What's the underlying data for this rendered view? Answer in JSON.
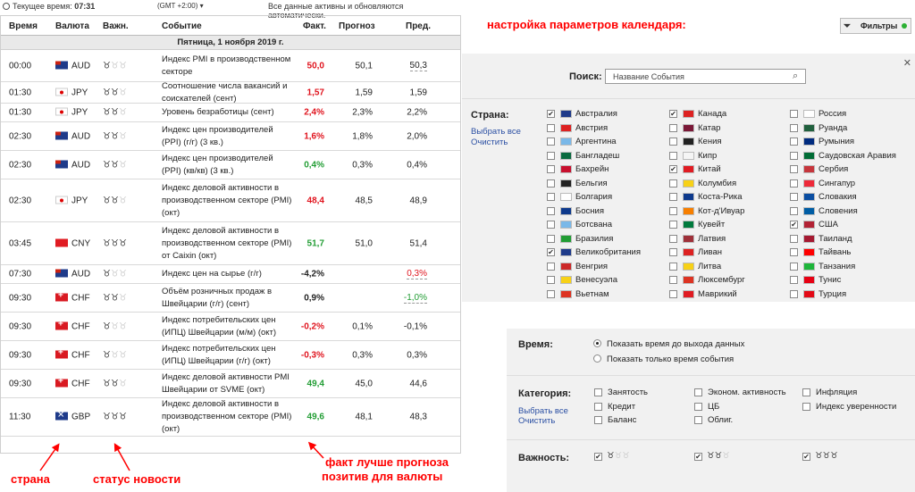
{
  "topbar": {
    "current_time_label": "Текущее время:",
    "current_time": "07:31",
    "timezone": "(GMT +2:00)",
    "status": "Все данные активны и обновляются автоматически."
  },
  "calendar": {
    "headers": {
      "time": "Время",
      "currency": "Валюта",
      "importance": "Важн.",
      "event": "Событие",
      "actual": "Факт.",
      "forecast": "Прогноз",
      "previous": "Пред."
    },
    "day_label": "Пятница, 1 ноября 2019 г.",
    "rows": [
      {
        "time": "00:00",
        "flag": "aud",
        "currency": "AUD",
        "bulls": 1,
        "event": "Индекс PMI в производственном секторе",
        "actual": "50,0",
        "actual_color": "red",
        "forecast": "50,1",
        "previous": "50,3",
        "prev_color": "blk",
        "prev_und": true
      },
      {
        "time": "01:30",
        "flag": "jpy",
        "currency": "JPY",
        "bulls": 2,
        "event": "Соотношение числа вакансий и соискателей (сент)",
        "actual": "1,57",
        "actual_color": "red",
        "forecast": "1,59",
        "previous": "1,59",
        "prev_color": "blk",
        "prev_und": false
      },
      {
        "time": "01:30",
        "flag": "jpy",
        "currency": "JPY",
        "bulls": 2,
        "event": "Уровень безработицы (сент)",
        "actual": "2,4%",
        "actual_color": "red",
        "forecast": "2,3%",
        "previous": "2,2%",
        "prev_color": "blk",
        "prev_und": false
      },
      {
        "time": "02:30",
        "flag": "aud",
        "currency": "AUD",
        "bulls": 2,
        "event": "Индекс цен производителей (PPI) (г/г) (3 кв.)",
        "actual": "1,6%",
        "actual_color": "red",
        "forecast": "1,8%",
        "previous": "2,0%",
        "prev_color": "blk",
        "prev_und": false
      },
      {
        "time": "02:30",
        "flag": "aud",
        "currency": "AUD",
        "bulls": 2,
        "event": "Индекс цен производителей (PPI) (кв/кв) (3 кв.)",
        "actual": "0,4%",
        "actual_color": "grn",
        "forecast": "0,3%",
        "previous": "0,4%",
        "prev_color": "blk",
        "prev_und": false
      },
      {
        "time": "02:30",
        "flag": "jpy",
        "currency": "JPY",
        "bulls": 2,
        "event": "Индекс деловой активности в производственном секторе (PMI) (окт)",
        "actual": "48,4",
        "actual_color": "red",
        "forecast": "48,5",
        "previous": "48,9",
        "prev_color": "blk",
        "prev_und": false
      },
      {
        "time": "03:45",
        "flag": "cny",
        "currency": "CNY",
        "bulls": 3,
        "event": "Индекс деловой активности в производственном секторе (PMI) от Caixin (окт)",
        "actual": "51,7",
        "actual_color": "grn",
        "forecast": "51,0",
        "previous": "51,4",
        "prev_color": "blk",
        "prev_und": false
      },
      {
        "time": "07:30",
        "flag": "aud",
        "currency": "AUD",
        "bulls": 1,
        "event": "Индекс цен на сырье (г/г)",
        "actual": "-4,2%",
        "actual_color": "blk",
        "forecast": "",
        "previous": "0,3%",
        "prev_color": "red",
        "prev_und": true
      },
      {
        "time": "09:30",
        "flag": "chf",
        "currency": "CHF",
        "bulls": 2,
        "event": "Объём розничных продаж в Швейцарии (г/г) (сент)",
        "actual": "0,9%",
        "actual_color": "blk",
        "forecast": "",
        "previous": "-1,0%",
        "prev_color": "grn",
        "prev_und": true
      },
      {
        "time": "09:30",
        "flag": "chf",
        "currency": "CHF",
        "bulls": 1,
        "event": "Индекс потребительских цен (ИПЦ) Швейцарии (м/м) (окт)",
        "actual": "-0,2%",
        "actual_color": "red",
        "forecast": "0,1%",
        "previous": "-0,1%",
        "prev_color": "blk",
        "prev_und": false
      },
      {
        "time": "09:30",
        "flag": "chf",
        "currency": "CHF",
        "bulls": 1,
        "event": "Индекс потребительских цен (ИПЦ) Швейцарии (г/г) (окт)",
        "actual": "-0,3%",
        "actual_color": "red",
        "forecast": "0,3%",
        "previous": "0,3%",
        "prev_color": "blk",
        "prev_und": false
      },
      {
        "time": "09:30",
        "flag": "chf",
        "currency": "CHF",
        "bulls": 2,
        "event": "Индекс деловой активности PMI Швейцарии от SVME (окт)",
        "actual": "49,4",
        "actual_color": "grn",
        "forecast": "45,0",
        "previous": "44,6",
        "prev_color": "blk",
        "prev_und": false
      },
      {
        "time": "11:30",
        "flag": "gbp",
        "currency": "GBP",
        "bulls": 3,
        "event": "Индекс деловой активности в производственном секторе (PMI) (окт)",
        "actual": "49,6",
        "actual_color": "grn",
        "forecast": "48,1",
        "previous": "48,3",
        "prev_color": "blk",
        "prev_und": false
      }
    ]
  },
  "annotations": {
    "country": "страна",
    "news_status": "статус новости",
    "fact_better_1": "факт лучше прогноза",
    "fact_better_2": "позитив для валюты",
    "settings_title": "настройка параметров календаря:"
  },
  "filters": {
    "button_label": "Фильтры",
    "search_label": "Поиск:",
    "search_placeholder": "Название События",
    "country_label": "Страна:",
    "select_all": "Выбрать все",
    "clear": "Очистить",
    "countries": [
      [
        {
          "name": "Австралия",
          "on": true
        },
        {
          "name": "Австрия",
          "on": false
        },
        {
          "name": "Аргентина",
          "on": false
        },
        {
          "name": "Бангладеш",
          "on": false
        },
        {
          "name": "Бахрейн",
          "on": false
        },
        {
          "name": "Бельгия",
          "on": false
        },
        {
          "name": "Болгария",
          "on": false
        },
        {
          "name": "Босния",
          "on": false
        },
        {
          "name": "Ботсвана",
          "on": false
        },
        {
          "name": "Бразилия",
          "on": false
        },
        {
          "name": "Великобритания",
          "on": true
        },
        {
          "name": "Венгрия",
          "on": false
        },
        {
          "name": "Венесуэла",
          "on": false
        },
        {
          "name": "Вьетнам",
          "on": false
        }
      ],
      [
        {
          "name": "Канада",
          "on": true
        },
        {
          "name": "Катар",
          "on": false
        },
        {
          "name": "Кения",
          "on": false
        },
        {
          "name": "Кипр",
          "on": false
        },
        {
          "name": "Китай",
          "on": true
        },
        {
          "name": "Колумбия",
          "on": false
        },
        {
          "name": "Коста-Рика",
          "on": false
        },
        {
          "name": "Кот-д'Ивуар",
          "on": false
        },
        {
          "name": "Кувейт",
          "on": false
        },
        {
          "name": "Латвия",
          "on": false
        },
        {
          "name": "Ливан",
          "on": false
        },
        {
          "name": "Литва",
          "on": false
        },
        {
          "name": "Люксембург",
          "on": false
        },
        {
          "name": "Маврикий",
          "on": false
        }
      ],
      [
        {
          "name": "Россия",
          "on": false
        },
        {
          "name": "Руанда",
          "on": false
        },
        {
          "name": "Румыния",
          "on": false
        },
        {
          "name": "Саудовская Аравия",
          "on": false
        },
        {
          "name": "Сербия",
          "on": false
        },
        {
          "name": "Сингапур",
          "on": false
        },
        {
          "name": "Словакия",
          "on": false
        },
        {
          "name": "Словения",
          "on": false
        },
        {
          "name": "США",
          "on": true
        },
        {
          "name": "Таиланд",
          "on": false
        },
        {
          "name": "Тайвань",
          "on": false
        },
        {
          "name": "Танзания",
          "on": false
        },
        {
          "name": "Тунис",
          "on": false
        },
        {
          "name": "Турция",
          "on": false
        }
      ]
    ],
    "flag_colors": [
      [
        "#1f3b8a",
        "#d22",
        "#7ab8e8",
        "#0a6a3f",
        "#c8102e",
        "#222",
        "#fff",
        "#0e3a8c",
        "#7ab8e8",
        "#229d34",
        "#1f3b8a",
        "#cc2929",
        "#f7d117",
        "#d32"
      ],
      [
        "#d22",
        "#7a1837",
        "#222",
        "#f5f5f5",
        "#e01b22",
        "#f7d117",
        "#0e3a8c",
        "#f77f00",
        "#007a3d",
        "#9e3039",
        "#d22",
        "#f7d117",
        "#d32",
        "#e01b22"
      ],
      [
        "#fff",
        "#20603d",
        "#002b7f",
        "#006c35",
        "#c6363c",
        "#ed2939",
        "#0b4ea2",
        "#005da4",
        "#b22234",
        "#a51931",
        "#fe0000",
        "#1eb53a",
        "#e70013",
        "#e30a17"
      ]
    ],
    "time_label": "Время:",
    "time_options": [
      "Показать время до выхода данных",
      "Показать только время события"
    ],
    "category_label": "Категория:",
    "categories": [
      [
        "Занятость",
        "Кредит",
        "Баланс"
      ],
      [
        "Эконом. активность",
        "ЦБ",
        "Облиг."
      ],
      [
        "Инфляция",
        "Индекс уверенности"
      ]
    ],
    "importance_label": "Важность:",
    "importance_levels": [
      1,
      2,
      3
    ]
  }
}
